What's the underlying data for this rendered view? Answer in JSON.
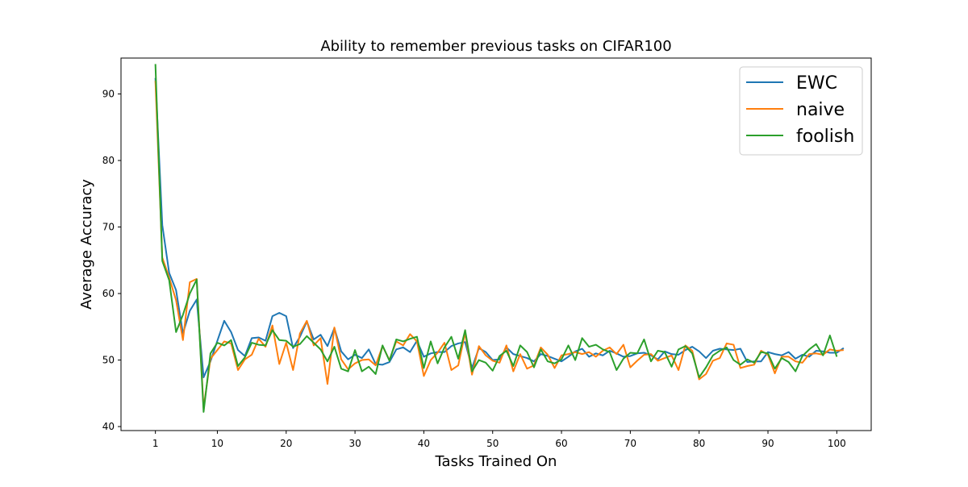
{
  "chart_data": {
    "type": "line",
    "title": "Ability to remember previous tasks on CIFAR100",
    "xlabel": "Tasks Trained On",
    "ylabel": "Average Accuracy",
    "xlim": [
      -4,
      105
    ],
    "ylim": [
      39.4,
      95.4
    ],
    "xticks": [
      1,
      10,
      20,
      30,
      40,
      50,
      60,
      70,
      80,
      90,
      100
    ],
    "yticks": [
      40,
      50,
      60,
      70,
      80,
      90
    ],
    "legend_position": "top-right",
    "grid": false,
    "x_start": 1,
    "series": [
      {
        "name": "EWC",
        "color": "#1f77b4",
        "values": [
          92.4,
          70.3,
          63.1,
          60.5,
          54.0,
          57.4,
          59.1,
          47.4,
          49.8,
          52.9,
          55.9,
          54.2,
          51.5,
          50.6,
          53.3,
          53.4,
          52.9,
          56.6,
          57.1,
          56.6,
          51.8,
          53.5,
          55.8,
          53.1,
          53.8,
          52.1,
          54.8,
          51.3,
          50.1,
          50.8,
          50.3,
          51.6,
          49.4,
          49.3,
          49.7,
          51.6,
          51.9,
          51.2,
          52.9,
          50.5,
          51.0,
          51.2,
          51.2,
          52.1,
          52.5,
          52.7,
          48.8,
          51.8,
          51.2,
          50.0,
          50.1,
          51.9,
          50.9,
          50.6,
          50.3,
          49.8,
          50.9,
          50.6,
          50.2,
          49.8,
          50.5,
          51.3,
          51.7,
          50.5,
          51.0,
          50.7,
          51.4,
          51.0,
          50.5,
          50.6,
          51.0,
          51.1,
          50.7,
          50.1,
          51.3,
          50.9,
          50.8,
          51.5,
          52.0,
          51.3,
          50.3,
          51.4,
          51.7,
          51.6,
          51.5,
          51.7,
          49.7,
          49.8,
          49.8,
          51.2,
          50.9,
          50.7,
          51.2,
          50.2,
          50.8,
          50.5,
          51.4,
          51.3,
          51.1,
          51.1,
          51.8
        ]
      },
      {
        "name": "naive",
        "color": "#ff7f0e",
        "values": [
          92.0,
          65.4,
          62.4,
          59.0,
          53.0,
          61.7,
          62.2,
          42.8,
          50.2,
          51.5,
          52.8,
          52.5,
          48.5,
          50.1,
          50.8,
          53.2,
          52.0,
          55.2,
          49.4,
          52.6,
          48.5,
          54.0,
          55.9,
          52.2,
          53.3,
          46.4,
          54.9,
          50.1,
          48.6,
          49.5,
          50.0,
          50.1,
          49.2,
          52.1,
          50.0,
          52.8,
          52.2,
          53.9,
          52.8,
          47.6,
          50.0,
          51.1,
          52.6,
          48.5,
          49.2,
          54.1,
          47.8,
          52.1,
          50.7,
          49.9,
          49.6,
          52.2,
          48.3,
          50.9,
          48.7,
          49.2,
          51.9,
          50.8,
          48.8,
          50.7,
          50.9,
          51.2,
          50.9,
          51.2,
          50.5,
          51.4,
          51.9,
          50.9,
          52.3,
          48.9,
          49.9,
          50.8,
          50.9,
          49.9,
          50.3,
          50.7,
          48.5,
          52.2,
          51.4,
          47.1,
          47.9,
          49.9,
          50.3,
          52.5,
          52.3,
          48.8,
          49.1,
          49.3,
          51.4,
          50.8,
          48.0,
          50.5,
          50.5,
          49.8,
          49.6,
          50.9,
          51.0,
          50.8,
          51.6,
          51.4,
          51.5
        ]
      },
      {
        "name": "foolish",
        "color": "#2ca02c",
        "values": [
          94.5,
          64.9,
          62.0,
          54.2,
          56.8,
          60.0,
          62.1,
          42.2,
          51.0,
          52.6,
          52.2,
          53.0,
          49.1,
          50.4,
          52.6,
          52.3,
          52.2,
          54.5,
          53.0,
          52.9,
          52.0,
          52.4,
          53.6,
          52.6,
          51.6,
          49.8,
          52.0,
          48.7,
          48.3,
          51.5,
          48.3,
          49.0,
          47.9,
          52.2,
          49.9,
          53.1,
          52.8,
          53.2,
          53.5,
          48.8,
          52.8,
          49.5,
          51.9,
          53.5,
          50.2,
          54.5,
          48.3,
          50.0,
          49.6,
          48.4,
          50.6,
          51.4,
          49.1,
          52.2,
          51.2,
          48.9,
          51.6,
          49.8,
          49.5,
          50.1,
          52.2,
          50.0,
          53.3,
          52.0,
          52.3,
          51.6,
          51.2,
          48.5,
          50.2,
          51.1,
          51.0,
          53.1,
          49.8,
          51.4,
          51.2,
          49.0,
          51.6,
          52.1,
          51.0,
          47.4,
          48.9,
          50.7,
          51.4,
          51.9,
          50.0,
          49.3,
          50.1,
          49.6,
          51.2,
          51.0,
          48.7,
          50.3,
          49.7,
          48.3,
          50.6,
          51.6,
          52.4,
          50.7,
          53.7,
          50.5
        ]
      }
    ]
  }
}
